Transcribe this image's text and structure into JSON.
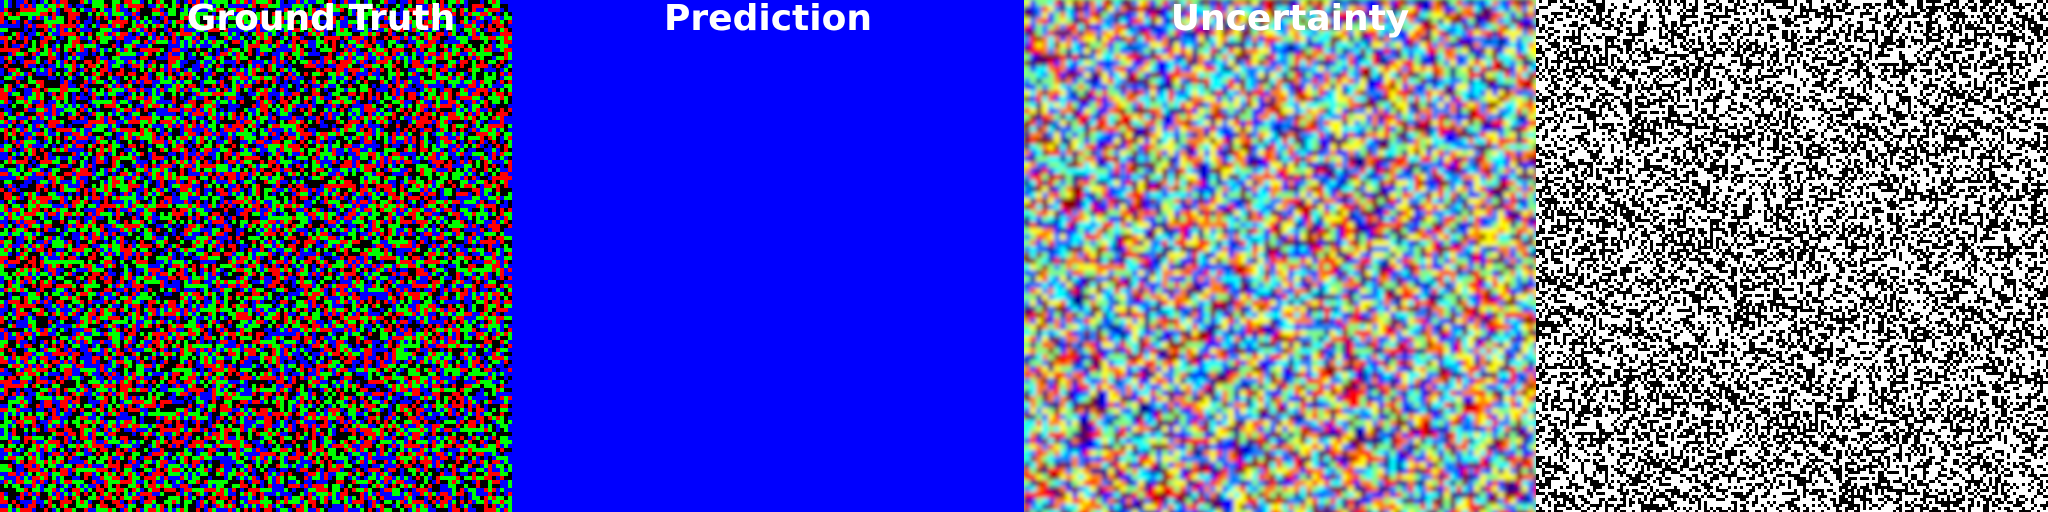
{
  "panels": [
    {
      "id": "ground-truth",
      "title": "Ground Truth",
      "pattern": "noise-rgb",
      "colors": [
        "#ff0000",
        "#00ff00",
        "#0000ff",
        "#000000"
      ],
      "background": "#000000"
    },
    {
      "id": "prediction",
      "title": "Prediction",
      "pattern": "solid",
      "background": "#0000ff"
    },
    {
      "id": "uncertainty",
      "title": "Uncertainty",
      "pattern": "jet-blobs",
      "colors": [
        "#00008f",
        "#0000ff",
        "#0080ff",
        "#00ffff",
        "#80ff80",
        "#ffff00",
        "#ff8000",
        "#ff0000",
        "#800000"
      ],
      "background": "#80ff80"
    },
    {
      "id": "error-map",
      "title": "",
      "pattern": "noise-binary",
      "colors": [
        "#ffffff",
        "#000000"
      ],
      "background": "#ffffff"
    }
  ]
}
